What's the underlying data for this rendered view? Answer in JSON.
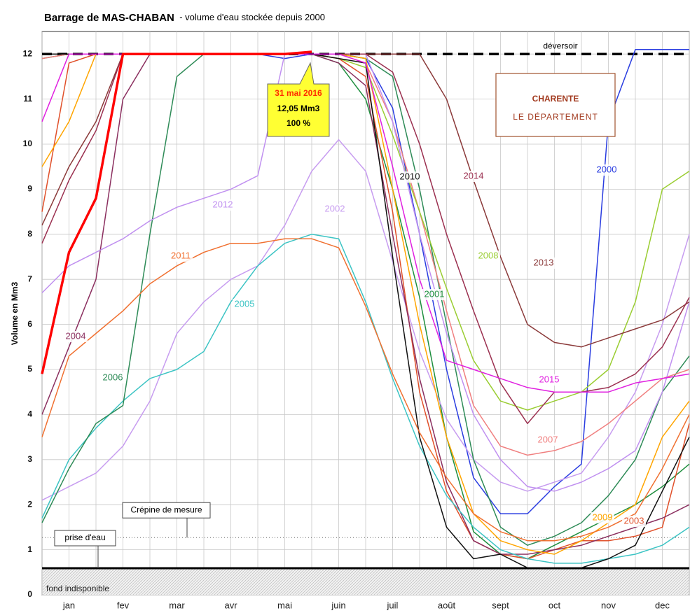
{
  "chart_data": {
    "type": "line",
    "title": "Barrage de MAS-CHABAN",
    "subtitle": "- volume d'eau stockée depuis 2000",
    "y_label": "Volume en Mm3",
    "categories": [
      null,
      "jan",
      null,
      "fev",
      null,
      "mar",
      null,
      "avr",
      null,
      "mai",
      null,
      "juin",
      null,
      "juil",
      null,
      "août",
      null,
      "sept",
      null,
      "oct",
      null,
      "nov",
      null,
      "dec",
      null
    ],
    "ylim": [
      0,
      12.5
    ],
    "yticks": [
      0,
      1,
      2,
      3,
      4,
      5,
      6,
      7,
      8,
      9,
      10,
      11,
      12
    ],
    "grid": true,
    "series": [
      {
        "name": "2000",
        "color": "#2a3de0",
        "values": [
          12,
          12,
          12,
          12,
          12,
          12,
          12,
          12,
          12,
          11.9,
          12,
          12,
          11.9,
          10.8,
          8,
          5,
          2.6,
          1.8,
          1.8,
          2.4,
          2.9,
          10.5,
          12.1,
          12.1,
          12.1
        ]
      },
      {
        "name": "2001",
        "color": "#1f8f3f",
        "values": [
          11.9,
          12,
          12,
          12,
          12,
          12,
          12,
          12,
          12,
          12,
          12,
          11.8,
          11,
          9,
          6.6,
          3.5,
          1.4,
          0.9,
          0.8,
          1.1,
          1.4,
          1.7,
          2,
          2.4,
          2.9
        ]
      },
      {
        "name": "2002",
        "color": "#c79cf0",
        "values": [
          2.1,
          2.4,
          2.7,
          3.3,
          4.3,
          5.8,
          6.5,
          7,
          7.3,
          8.2,
          9.4,
          10.1,
          9.4,
          7.4,
          5.4,
          3.9,
          3,
          2.5,
          2.3,
          2.5,
          2.7,
          3.5,
          4.5,
          6,
          8
        ]
      },
      {
        "name": "2003",
        "color": "#e0502a",
        "values": [
          8.5,
          11.8,
          12,
          12,
          12,
          12,
          12,
          12,
          12,
          12,
          12,
          11.9,
          11.5,
          8.5,
          4.5,
          2.3,
          1.2,
          0.9,
          0.8,
          1,
          1.2,
          1.2,
          1.3,
          1.5,
          3.8
        ]
      },
      {
        "name": "2004",
        "color": "#8b2f5f",
        "values": [
          4,
          5.5,
          7,
          11,
          12,
          12,
          12,
          12,
          12,
          12,
          12,
          11.8,
          11.3,
          8,
          4.8,
          2.5,
          1.2,
          0.9,
          0.9,
          1,
          1.1,
          1.3,
          1.5,
          1.7,
          2
        ]
      },
      {
        "name": "2005",
        "color": "#3cc4c4",
        "values": [
          1.7,
          3,
          3.7,
          4.3,
          4.8,
          5,
          5.4,
          6.5,
          7.3,
          7.8,
          8,
          7.9,
          6.5,
          4.8,
          3.3,
          2.2,
          1.5,
          1,
          0.8,
          0.7,
          0.7,
          0.8,
          0.9,
          1.1,
          1.5
        ]
      },
      {
        "name": "2006",
        "color": "#2e8b57",
        "values": [
          1.6,
          2.8,
          3.8,
          4.2,
          8,
          11.5,
          12,
          12,
          12,
          12,
          12,
          12,
          11.9,
          11.5,
          9,
          6,
          3,
          1.5,
          1.1,
          1.3,
          1.6,
          2.2,
          3,
          4.5,
          5.3
        ]
      },
      {
        "name": "2007",
        "color": "#f07f7f",
        "values": [
          11.9,
          12,
          12,
          12,
          12,
          12,
          12,
          12,
          12,
          12,
          12,
          12,
          11.8,
          10.5,
          8.5,
          6.3,
          4.2,
          3.3,
          3.1,
          3.2,
          3.4,
          3.8,
          4.3,
          4.8,
          5
        ]
      },
      {
        "name": "2008",
        "color": "#9acd32",
        "values": [
          12,
          12,
          12,
          12,
          12,
          12,
          12,
          12,
          12,
          12,
          12,
          11.9,
          11.7,
          10.2,
          8.5,
          6.8,
          5.2,
          4.3,
          4.1,
          4.3,
          4.5,
          5,
          6.5,
          9,
          9.4
        ]
      },
      {
        "name": "2009",
        "color": "#ffa500",
        "values": [
          9.5,
          10.5,
          12,
          12,
          12,
          12,
          12,
          12,
          12,
          12,
          12,
          12,
          11.9,
          9,
          6,
          3.5,
          1.8,
          1.2,
          1,
          0.9,
          1.2,
          1.6,
          2,
          3.5,
          4.3
        ]
      },
      {
        "name": "2010",
        "color": "#111111",
        "values": [
          12,
          12,
          12,
          12,
          12,
          12,
          12,
          12,
          12,
          12,
          12,
          11.9,
          11.8,
          7.5,
          3.5,
          1.5,
          0.8,
          0.9,
          0.6,
          0.6,
          0.6,
          0.8,
          1.1,
          2.3,
          3.5
        ]
      },
      {
        "name": "2011",
        "color": "#f07030",
        "values": [
          3.5,
          5.3,
          5.8,
          6.3,
          6.9,
          7.3,
          7.6,
          7.8,
          7.8,
          7.9,
          7.9,
          7.7,
          6.4,
          4.9,
          3.6,
          2.6,
          1.8,
          1.4,
          1.2,
          1.2,
          1.3,
          1.5,
          1.8,
          2.8,
          4
        ]
      },
      {
        "name": "2012",
        "color": "#c090f0",
        "values": [
          6.7,
          7.3,
          7.6,
          7.9,
          8.3,
          8.6,
          8.8,
          9,
          9.3,
          12,
          12,
          12,
          12,
          10.5,
          8,
          5.8,
          4,
          3,
          2.4,
          2.3,
          2.5,
          2.8,
          3.2,
          4.5,
          6.5
        ]
      },
      {
        "name": "2013",
        "color": "#8b3a3a",
        "values": [
          8.2,
          9.5,
          10.5,
          12,
          12,
          12,
          12,
          12,
          12,
          12,
          12,
          12,
          12,
          12,
          12,
          11,
          9.2,
          7.5,
          6,
          5.6,
          5.5,
          5.7,
          5.9,
          6.1,
          6.5
        ]
      },
      {
        "name": "2014",
        "color": "#9b3050",
        "values": [
          7.8,
          9.2,
          10.3,
          12,
          12,
          12,
          12,
          12,
          12,
          12,
          12,
          12,
          12,
          11.6,
          10,
          8,
          6.3,
          4.7,
          3.8,
          4.5,
          4.5,
          4.6,
          4.9,
          5.5,
          6.6
        ]
      },
      {
        "name": "2015",
        "color": "#e020e0",
        "values": [
          10.5,
          12,
          12,
          12,
          12,
          12,
          12,
          12,
          12,
          12,
          12,
          12,
          11.8,
          9.5,
          7,
          5.2,
          5,
          4.8,
          4.6,
          4.5,
          4.5,
          4.5,
          4.7,
          4.8,
          4.9
        ]
      },
      {
        "color": "#ff0000",
        "values": [
          4.9,
          7.6,
          8.8,
          12,
          12,
          12,
          12,
          12,
          12,
          12,
          12.05,
          null,
          null,
          null,
          null,
          null,
          null,
          null,
          null,
          null,
          null,
          null,
          null,
          null,
          null
        ]
      }
    ],
    "reference_lines": [
      {
        "label": "déversoir",
        "value": 12
      },
      {
        "label": "Crépine de mesure",
        "value": 1.27
      },
      {
        "label": "prise d'eau",
        "value": 0.59
      }
    ],
    "bottom_zone": "fond indisponible",
    "annotation": [
      "31 mai 2016",
      "12,05 Mm3",
      "100 %"
    ],
    "logo": {
      "name": "CHARENTE",
      "tagline": "LE DÉPARTEMENT"
    }
  }
}
